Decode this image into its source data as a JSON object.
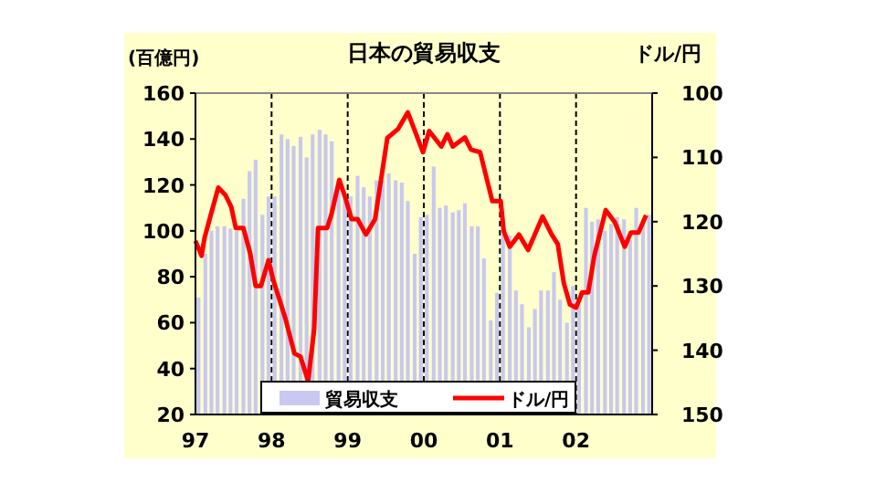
{
  "chart_data": {
    "type": "bar",
    "title": "日本の貿易収支",
    "ylabel": "(百億円)",
    "y2label": "ドル/円",
    "xlim": [
      1997,
      2003
    ],
    "xticks": [
      {
        "value": 1997,
        "label": "97"
      },
      {
        "value": 1998,
        "label": "98"
      },
      {
        "value": 1999,
        "label": "99"
      },
      {
        "value": 2000,
        "label": "00"
      },
      {
        "value": 2001,
        "label": "01"
      },
      {
        "value": 2002,
        "label": "02"
      }
    ],
    "ylim": [
      20,
      160
    ],
    "yticks": [
      20,
      40,
      60,
      80,
      100,
      120,
      140,
      160
    ],
    "y2lim": [
      150,
      100
    ],
    "y2ticks": [
      100,
      110,
      120,
      130,
      140,
      150
    ],
    "grid": "x",
    "legend": "bottom",
    "series": [
      {
        "name": "貿易収支",
        "color": "#c8c8f0",
        "x": [
          1997.04,
          1997.13,
          1997.21,
          1997.29,
          1997.38,
          1997.46,
          1997.54,
          1997.63,
          1997.71,
          1997.79,
          1997.88,
          1997.96,
          1998.04,
          1998.13,
          1998.21,
          1998.29,
          1998.38,
          1998.46,
          1998.54,
          1998.63,
          1998.71,
          1998.79,
          1998.88,
          1998.96,
          1999.04,
          1999.13,
          1999.21,
          1999.29,
          1999.38,
          1999.46,
          1999.54,
          1999.63,
          1999.71,
          1999.79,
          1999.88,
          1999.96,
          2000.04,
          2000.13,
          2000.21,
          2000.29,
          2000.38,
          2000.46,
          2000.54,
          2000.63,
          2000.71,
          2000.79,
          2000.88,
          2000.96,
          2001.04,
          2001.13,
          2001.21,
          2001.29,
          2001.38,
          2001.46,
          2001.54,
          2001.63,
          2001.71,
          2001.79,
          2001.88,
          2001.96,
          2002.04,
          2002.13,
          2002.21,
          2002.29,
          2002.38,
          2002.46,
          2002.54,
          2002.63,
          2002.71,
          2002.79,
          2002.88,
          2002.96
        ],
        "values": [
          71,
          90,
          100,
          102,
          102,
          101,
          100,
          114,
          126,
          131,
          107,
          115,
          115,
          142,
          140,
          137,
          141,
          132,
          142,
          144,
          142,
          139,
          122,
          116,
          115,
          124,
          119,
          115,
          122,
          122,
          125,
          122,
          121,
          113,
          90,
          106,
          107,
          128,
          110,
          111,
          108,
          109,
          112,
          102,
          102,
          88,
          61,
          73,
          99,
          98,
          74,
          68,
          58,
          66,
          74,
          74,
          82,
          70,
          60,
          76,
          68,
          110,
          104,
          105,
          100,
          103,
          106,
          105,
          96,
          110,
          104,
          107
        ]
      },
      {
        "name": "ドル/円",
        "type": "line",
        "axis": "y2",
        "color": "#ff0000",
        "x": [
          1997.0,
          1997.08,
          1997.12,
          1997.2,
          1997.3,
          1997.39,
          1997.47,
          1997.53,
          1997.63,
          1997.72,
          1997.79,
          1997.86,
          1997.96,
          1998.02,
          1998.1,
          1998.18,
          1998.3,
          1998.38,
          1998.48,
          1998.56,
          1998.61,
          1998.73,
          1998.79,
          1998.89,
          1998.97,
          1999.05,
          1999.13,
          1999.24,
          1999.36,
          1999.52,
          1999.66,
          1999.79,
          1999.99,
          2000.07,
          2000.23,
          2000.31,
          2000.38,
          2000.54,
          2000.62,
          2000.74,
          2000.9,
          2001.01,
          2001.05,
          2001.13,
          2001.25,
          2001.37,
          2001.56,
          2001.68,
          2001.76,
          2001.84,
          2001.92,
          2002.0,
          2002.08,
          2002.16,
          2002.24,
          2002.39,
          2002.51,
          2002.64,
          2002.72,
          2002.82,
          2002.92
        ],
        "values": [
          123,
          125.3,
          122.5,
          119,
          114.7,
          115.8,
          117.7,
          121,
          121,
          125,
          130,
          130,
          126,
          129,
          132,
          135,
          140.5,
          141,
          144.8,
          136.7,
          121,
          121,
          118.7,
          113.5,
          116.3,
          119.6,
          119.6,
          122,
          119.6,
          107,
          105.6,
          103,
          109.2,
          105.9,
          108.3,
          106.4,
          108.3,
          106.9,
          108.8,
          109.2,
          116.8,
          116.8,
          121.5,
          123.9,
          122,
          124.4,
          119.2,
          122,
          123.5,
          129.6,
          132.9,
          133.4,
          131,
          131,
          125.3,
          118.2,
          120.1,
          123.9,
          121.7,
          121.7,
          119
        ]
      }
    ]
  }
}
